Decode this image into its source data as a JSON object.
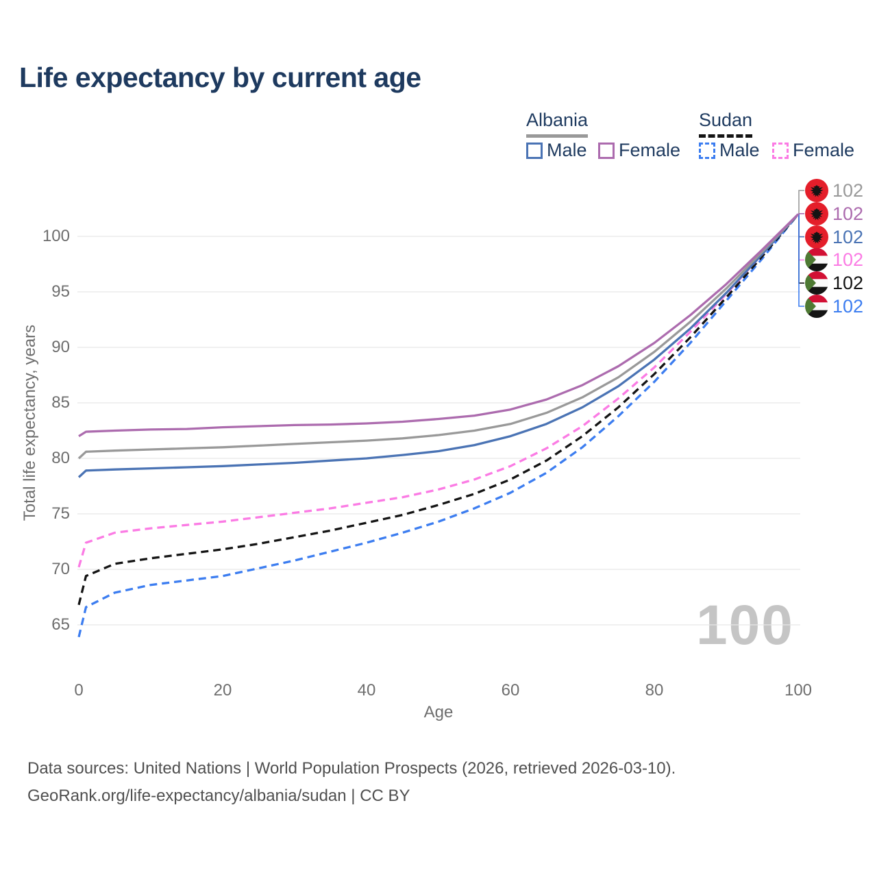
{
  "title": "Life expectancy by current age",
  "legend": {
    "groups": [
      {
        "country": "Albania",
        "underline_style": "solid",
        "underline_color": "#999999",
        "items": [
          {
            "label": "Male",
            "color": "#4a73b4",
            "line": "solid"
          },
          {
            "label": "Female",
            "color": "#ac6bae",
            "line": "solid"
          }
        ]
      },
      {
        "country": "Sudan",
        "underline_style": "dashed",
        "underline_color": "#141414",
        "items": [
          {
            "label": "Male",
            "color": "#3c7df0",
            "line": "dashed"
          },
          {
            "label": "Female",
            "color": "#fb7be4",
            "line": "dashed"
          }
        ]
      }
    ]
  },
  "chart_data": {
    "type": "line",
    "xlabel": "Age",
    "ylabel": "Total life expectancy, years",
    "xticks": [
      0,
      20,
      40,
      60,
      80,
      100
    ],
    "yticks": [
      65,
      70,
      75,
      80,
      85,
      90,
      95,
      100
    ],
    "xlim": [
      0,
      100
    ],
    "ylim": [
      62,
      103.5
    ],
    "grid": "horizontal-only",
    "legend_position": "top-right",
    "watermark": "100",
    "x": [
      0,
      1,
      5,
      10,
      15,
      20,
      25,
      30,
      35,
      40,
      45,
      50,
      55,
      60,
      65,
      70,
      75,
      80,
      85,
      90,
      95,
      100
    ],
    "series": [
      {
        "name": "Albania both sexes",
        "country": "Albania",
        "sex": "total",
        "color": "#999999",
        "line": "solid",
        "flag": "albania",
        "end_label": "102",
        "values": [
          80.0,
          80.6,
          80.7,
          80.8,
          80.9,
          81.0,
          81.15,
          81.3,
          81.45,
          81.6,
          81.8,
          82.1,
          82.5,
          83.1,
          84.1,
          85.5,
          87.3,
          89.6,
          92.3,
          95.3,
          98.6,
          102.0
        ]
      },
      {
        "name": "Albania Female",
        "country": "Albania",
        "sex": "female",
        "color": "#ac6bae",
        "line": "solid",
        "flag": "albania",
        "end_label": "102",
        "values": [
          82.0,
          82.4,
          82.5,
          82.6,
          82.65,
          82.8,
          82.9,
          83.0,
          83.05,
          83.15,
          83.3,
          83.55,
          83.85,
          84.4,
          85.3,
          86.6,
          88.3,
          90.4,
          92.9,
          95.7,
          98.8,
          102.0
        ]
      },
      {
        "name": "Albania Male",
        "country": "Albania",
        "sex": "male",
        "color": "#4a73b4",
        "line": "solid",
        "flag": "albania",
        "end_label": "102",
        "values": [
          78.3,
          78.9,
          79.0,
          79.1,
          79.2,
          79.3,
          79.45,
          79.6,
          79.8,
          80.0,
          80.3,
          80.65,
          81.2,
          82.0,
          83.1,
          84.6,
          86.5,
          88.9,
          91.7,
          94.9,
          98.4,
          102.0
        ]
      },
      {
        "name": "Sudan Female",
        "country": "Sudan",
        "sex": "female",
        "color": "#fb7be4",
        "line": "dashed",
        "flag": "sudan",
        "end_label": "102",
        "values": [
          70.2,
          72.4,
          73.3,
          73.7,
          74.0,
          74.3,
          74.7,
          75.1,
          75.5,
          76.0,
          76.5,
          77.2,
          78.1,
          79.3,
          80.9,
          82.9,
          85.4,
          88.2,
          91.4,
          94.8,
          98.4,
          102.0
        ]
      },
      {
        "name": "Sudan both sexes",
        "country": "Sudan",
        "sex": "total",
        "color": "#141414",
        "line": "dashed",
        "flag": "sudan",
        "end_label": "102",
        "values": [
          66.8,
          69.4,
          70.5,
          71.0,
          71.4,
          71.8,
          72.3,
          72.9,
          73.5,
          74.2,
          74.9,
          75.8,
          76.8,
          78.1,
          79.8,
          82.0,
          84.6,
          87.6,
          90.9,
          94.5,
          98.2,
          102.0
        ]
      },
      {
        "name": "Sudan Male",
        "country": "Sudan",
        "sex": "male",
        "color": "#3c7df0",
        "line": "dashed",
        "flag": "sudan",
        "end_label": "102",
        "values": [
          63.9,
          66.6,
          67.9,
          68.6,
          69.0,
          69.4,
          70.1,
          70.8,
          71.6,
          72.4,
          73.3,
          74.3,
          75.5,
          76.9,
          78.7,
          81.0,
          83.8,
          86.9,
          90.4,
          94.2,
          98.0,
          102.0
        ]
      }
    ]
  },
  "colors": {
    "title_text": "#1e3a5f",
    "legend_text": "#1e3a5f",
    "tick_text": "#6e6e6e",
    "gridline": "#e8e8e8",
    "watermark": "#c5c5c5",
    "footer_text": "#4f4f4f",
    "albania_flag_red": "#e41e2a",
    "sudan_flag_red": "#d21034",
    "sudan_flag_green": "#4e7a33"
  },
  "footer": {
    "line1": "Data sources: United Nations | World Population Prospects (2026, retrieved 2026-03-10).",
    "line2": "GeoRank.org/life-expectancy/albania/sudan | CC BY"
  }
}
